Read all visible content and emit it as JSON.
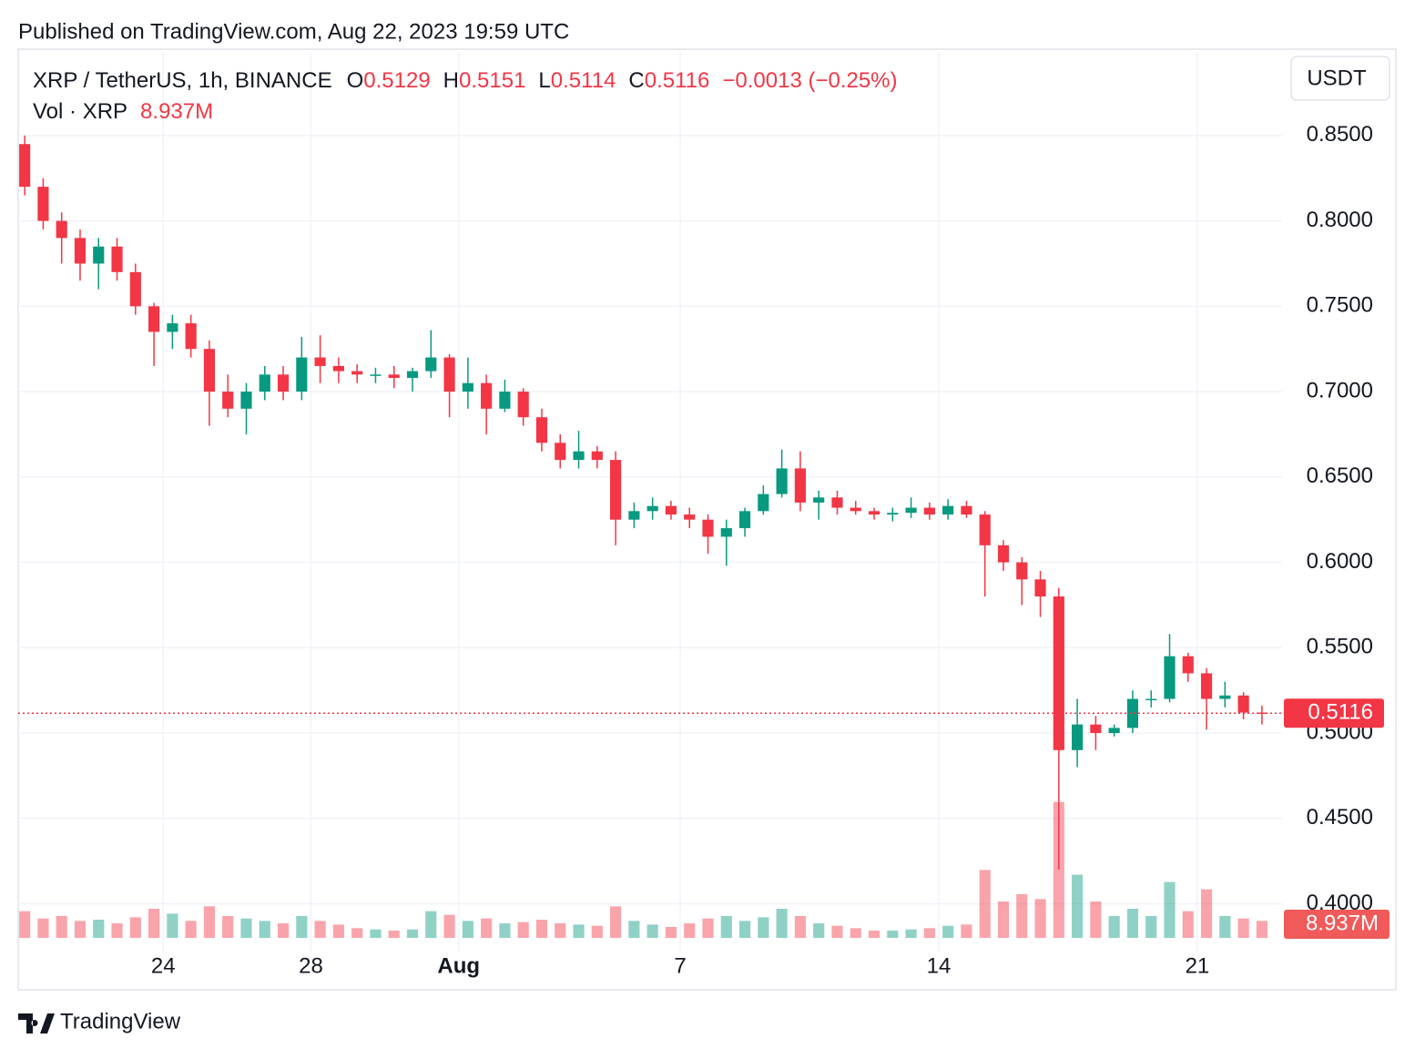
{
  "header": {
    "published": "Published on TradingView.com, Aug 22, 2023 19:59 UTC",
    "symbol": "XRP / TetherUS, 1h, BINANCE",
    "o_label": "O",
    "o": "0.5129",
    "h_label": "H",
    "h": "0.5151",
    "l_label": "L",
    "l": "0.5114",
    "c_label": "C",
    "c": "0.5116",
    "change": "−0.0013 (−0.25%)",
    "vol_label": "Vol · XRP",
    "vol": "8.937M",
    "currency": "USDT",
    "vol_tag": "8.937M"
  },
  "footer": {
    "brand": "TradingView"
  },
  "chart_data": {
    "type": "candlestick",
    "categories": [
      null,
      null,
      null,
      null,
      null,
      null,
      null,
      null,
      "24",
      null,
      null,
      null,
      null,
      null,
      null,
      null,
      "28",
      null,
      null,
      null,
      null,
      null,
      null,
      null,
      "Aug",
      null,
      null,
      null,
      null,
      null,
      null,
      null,
      null,
      null,
      null,
      null,
      "7",
      null,
      null,
      null,
      null,
      null,
      null,
      null,
      null,
      null,
      null,
      null,
      null,
      null,
      "14",
      null,
      null,
      null,
      null,
      null,
      null,
      null,
      null,
      null,
      null,
      null,
      null,
      null,
      "21",
      null,
      null,
      null
    ],
    "open": [
      0.845,
      0.82,
      0.8,
      0.79,
      0.775,
      0.785,
      0.77,
      0.75,
      0.735,
      0.74,
      0.725,
      0.7,
      0.69,
      0.7,
      0.71,
      0.7,
      0.72,
      0.715,
      0.712,
      0.71,
      0.71,
      0.708,
      0.712,
      0.72,
      0.7,
      0.705,
      0.69,
      0.7,
      0.685,
      0.67,
      0.66,
      0.665,
      0.66,
      0.625,
      0.63,
      0.633,
      0.628,
      0.625,
      0.615,
      0.62,
      0.63,
      0.64,
      0.655,
      0.635,
      0.638,
      0.632,
      0.63,
      0.628,
      0.629,
      0.632,
      0.628,
      0.633,
      0.628,
      0.61,
      0.6,
      0.59,
      0.58,
      0.49,
      0.505,
      0.5,
      0.503,
      0.52,
      0.52,
      0.545,
      0.535,
      0.52,
      0.522,
      0.512
    ],
    "high": [
      0.85,
      0.825,
      0.805,
      0.795,
      0.79,
      0.79,
      0.775,
      0.752,
      0.745,
      0.745,
      0.73,
      0.71,
      0.705,
      0.715,
      0.715,
      0.732,
      0.733,
      0.72,
      0.716,
      0.714,
      0.715,
      0.714,
      0.736,
      0.722,
      0.72,
      0.71,
      0.707,
      0.702,
      0.69,
      0.675,
      0.677,
      0.668,
      0.665,
      0.635,
      0.638,
      0.636,
      0.632,
      0.628,
      0.625,
      0.632,
      0.645,
      0.666,
      0.665,
      0.642,
      0.642,
      0.636,
      0.632,
      0.632,
      0.638,
      0.635,
      0.637,
      0.636,
      0.63,
      0.613,
      0.603,
      0.595,
      0.585,
      0.52,
      0.51,
      0.505,
      0.525,
      0.525,
      0.558,
      0.547,
      0.538,
      0.53,
      0.524,
      0.516
    ],
    "low": [
      0.815,
      0.795,
      0.775,
      0.765,
      0.76,
      0.765,
      0.745,
      0.715,
      0.725,
      0.72,
      0.68,
      0.685,
      0.675,
      0.695,
      0.695,
      0.695,
      0.705,
      0.705,
      0.705,
      0.705,
      0.702,
      0.7,
      0.708,
      0.685,
      0.69,
      0.675,
      0.688,
      0.68,
      0.665,
      0.655,
      0.655,
      0.655,
      0.61,
      0.62,
      0.625,
      0.625,
      0.62,
      0.605,
      0.598,
      0.615,
      0.628,
      0.638,
      0.63,
      0.625,
      0.628,
      0.628,
      0.625,
      0.624,
      0.626,
      0.625,
      0.625,
      0.626,
      0.58,
      0.595,
      0.575,
      0.568,
      0.42,
      0.48,
      0.49,
      0.498,
      0.5,
      0.515,
      0.518,
      0.53,
      0.502,
      0.515,
      0.508,
      0.505
    ],
    "close": [
      0.82,
      0.8,
      0.79,
      0.775,
      0.785,
      0.77,
      0.75,
      0.735,
      0.74,
      0.725,
      0.7,
      0.69,
      0.7,
      0.71,
      0.7,
      0.72,
      0.715,
      0.712,
      0.71,
      0.71,
      0.708,
      0.712,
      0.72,
      0.7,
      0.705,
      0.69,
      0.7,
      0.685,
      0.67,
      0.66,
      0.665,
      0.66,
      0.625,
      0.63,
      0.633,
      0.628,
      0.625,
      0.615,
      0.62,
      0.63,
      0.64,
      0.655,
      0.635,
      0.638,
      0.632,
      0.63,
      0.628,
      0.629,
      0.632,
      0.628,
      0.633,
      0.628,
      0.61,
      0.6,
      0.59,
      0.58,
      0.49,
      0.505,
      0.5,
      0.503,
      0.52,
      0.52,
      0.545,
      0.535,
      0.52,
      0.522,
      0.512,
      0.5116
    ],
    "volume": [
      110,
      80,
      90,
      70,
      75,
      60,
      85,
      120,
      100,
      70,
      130,
      90,
      80,
      70,
      60,
      90,
      70,
      55,
      40,
      35,
      30,
      35,
      110,
      95,
      70,
      80,
      60,
      65,
      75,
      60,
      55,
      50,
      130,
      70,
      55,
      45,
      60,
      80,
      90,
      70,
      85,
      120,
      90,
      60,
      50,
      40,
      30,
      30,
      35,
      40,
      50,
      55,
      280,
      150,
      180,
      160,
      560,
      260,
      150,
      90,
      120,
      90,
      230,
      110,
      200,
      90,
      80,
      70
    ],
    "ylim": [
      0.38,
      0.899
    ],
    "yticks": [
      {
        "value": 0.4,
        "label": "0.4000"
      },
      {
        "value": 0.45,
        "label": "0.4500"
      },
      {
        "value": 0.5,
        "label": "0.5000"
      },
      {
        "value": 0.55,
        "label": "0.5500"
      },
      {
        "value": 0.6,
        "label": "0.6000"
      },
      {
        "value": 0.65,
        "label": "0.6500"
      },
      {
        "value": 0.7,
        "label": "0.7000"
      },
      {
        "value": 0.75,
        "label": "0.7500"
      },
      {
        "value": 0.8,
        "label": "0.8000"
      },
      {
        "value": 0.85,
        "label": "0.8500"
      }
    ],
    "vol_lim": [
      0,
      600
    ],
    "last_price": {
      "value": 0.5116,
      "label": "0.5116"
    },
    "up_color": "#089981",
    "down_color": "#f23645",
    "grid": true
  }
}
